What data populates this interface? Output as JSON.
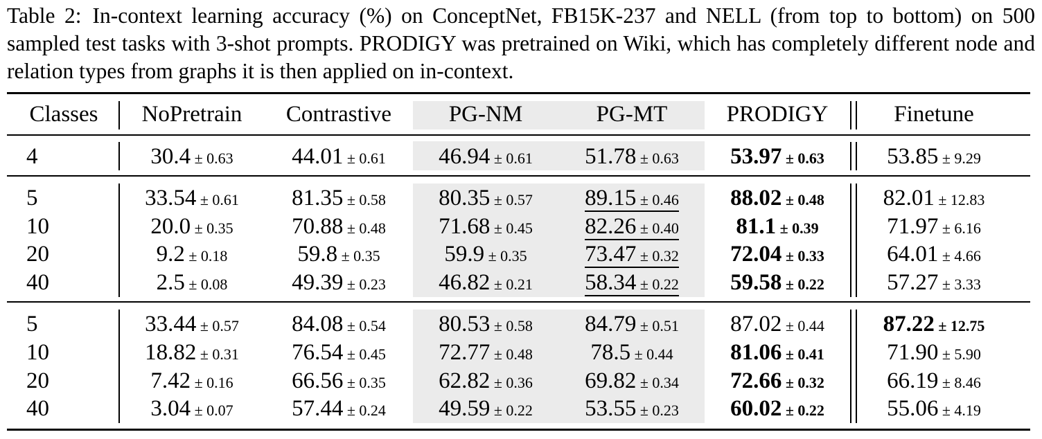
{
  "caption": {
    "label": "Table 2:",
    "text": "In-context learning accuracy (%) on ConceptNet, FB15K-237 and NELL (from top to bottom) on 500 sampled test tasks with 3-shot prompts. PRODIGY was pretrained on Wiki, which has completely different node and relation types from graphs it is then applied on in-context."
  },
  "columns": [
    "Classes",
    "NoPretrain",
    "Contrastive",
    "PG-NM",
    "PG-MT",
    "PRODIGY",
    "Finetune"
  ],
  "groups": [
    {
      "rows": [
        {
          "classes": "4",
          "cells": [
            [
              "30.4",
              "± 0.63"
            ],
            [
              "44.01",
              "± 0.61"
            ],
            [
              "46.94",
              "± 0.61"
            ],
            [
              "51.78",
              "± 0.63"
            ],
            [
              "53.97",
              "± 0.63"
            ],
            [
              "53.85",
              "± 9.29"
            ]
          ]
        }
      ]
    },
    {
      "rows": [
        {
          "classes": "5",
          "cells": [
            [
              "33.54",
              "± 0.61"
            ],
            [
              "81.35",
              "± 0.58"
            ],
            [
              "80.35",
              "± 0.57"
            ],
            [
              "89.15",
              "± 0.46"
            ],
            [
              "88.02",
              "± 0.48"
            ],
            [
              "82.01",
              "± 12.83"
            ]
          ]
        },
        {
          "classes": "10",
          "cells": [
            [
              "20.0",
              "± 0.35"
            ],
            [
              "70.88",
              "± 0.48"
            ],
            [
              "71.68",
              "± 0.45"
            ],
            [
              "82.26",
              "± 0.40"
            ],
            [
              "81.1",
              "± 0.39"
            ],
            [
              "71.97",
              "± 6.16"
            ]
          ]
        },
        {
          "classes": "20",
          "cells": [
            [
              "9.2",
              "± 0.18"
            ],
            [
              "59.8",
              "± 0.35"
            ],
            [
              "59.9",
              "± 0.35"
            ],
            [
              "73.47",
              "± 0.32"
            ],
            [
              "72.04",
              "± 0.33"
            ],
            [
              "64.01",
              "± 4.66"
            ]
          ]
        },
        {
          "classes": "40",
          "cells": [
            [
              "2.5",
              "± 0.08"
            ],
            [
              "49.39",
              "± 0.23"
            ],
            [
              "46.82",
              "± 0.21"
            ],
            [
              "58.34",
              "± 0.22"
            ],
            [
              "59.58",
              "± 0.22"
            ],
            [
              "57.27",
              "± 3.33"
            ]
          ]
        }
      ]
    },
    {
      "rows": [
        {
          "classes": "5",
          "cells": [
            [
              "33.44",
              "± 0.57"
            ],
            [
              "84.08",
              "± 0.54"
            ],
            [
              "80.53",
              "± 0.58"
            ],
            [
              "84.79",
              "± 0.51"
            ],
            [
              "87.02",
              "± 0.44"
            ],
            [
              "87.22",
              "± 12.75"
            ]
          ]
        },
        {
          "classes": "10",
          "cells": [
            [
              "18.82",
              "± 0.31"
            ],
            [
              "76.54",
              "± 0.45"
            ],
            [
              "72.77",
              "± 0.48"
            ],
            [
              "78.5",
              "± 0.44"
            ],
            [
              "81.06",
              "± 0.41"
            ],
            [
              "71.90",
              "± 5.90"
            ]
          ]
        },
        {
          "classes": "20",
          "cells": [
            [
              "7.42",
              "± 0.16"
            ],
            [
              "66.56",
              "± 0.35"
            ],
            [
              "62.82",
              "± 0.36"
            ],
            [
              "69.82",
              "± 0.34"
            ],
            [
              "72.66",
              "± 0.32"
            ],
            [
              "66.19",
              "± 8.46"
            ]
          ]
        },
        {
          "classes": "40",
          "cells": [
            [
              "3.04",
              "± 0.07"
            ],
            [
              "57.44",
              "± 0.24"
            ],
            [
              "49.59",
              "± 0.22"
            ],
            [
              "53.55",
              "± 0.23"
            ],
            [
              "60.02",
              "± 0.22"
            ],
            [
              "55.06",
              "± 4.19"
            ]
          ]
        }
      ]
    }
  ],
  "emphasis": {
    "bold": [
      [
        0,
        0,
        4
      ],
      [
        1,
        0,
        4
      ],
      [
        1,
        1,
        4
      ],
      [
        1,
        2,
        4
      ],
      [
        1,
        3,
        4
      ],
      [
        2,
        0,
        5
      ],
      [
        2,
        1,
        4
      ],
      [
        2,
        2,
        4
      ],
      [
        2,
        3,
        4
      ]
    ],
    "underline": [
      [
        1,
        0,
        3
      ],
      [
        1,
        1,
        3
      ],
      [
        1,
        2,
        3
      ],
      [
        1,
        3,
        3
      ]
    ]
  },
  "colors": {
    "shade": "#ebebeb",
    "text": "#000000"
  }
}
